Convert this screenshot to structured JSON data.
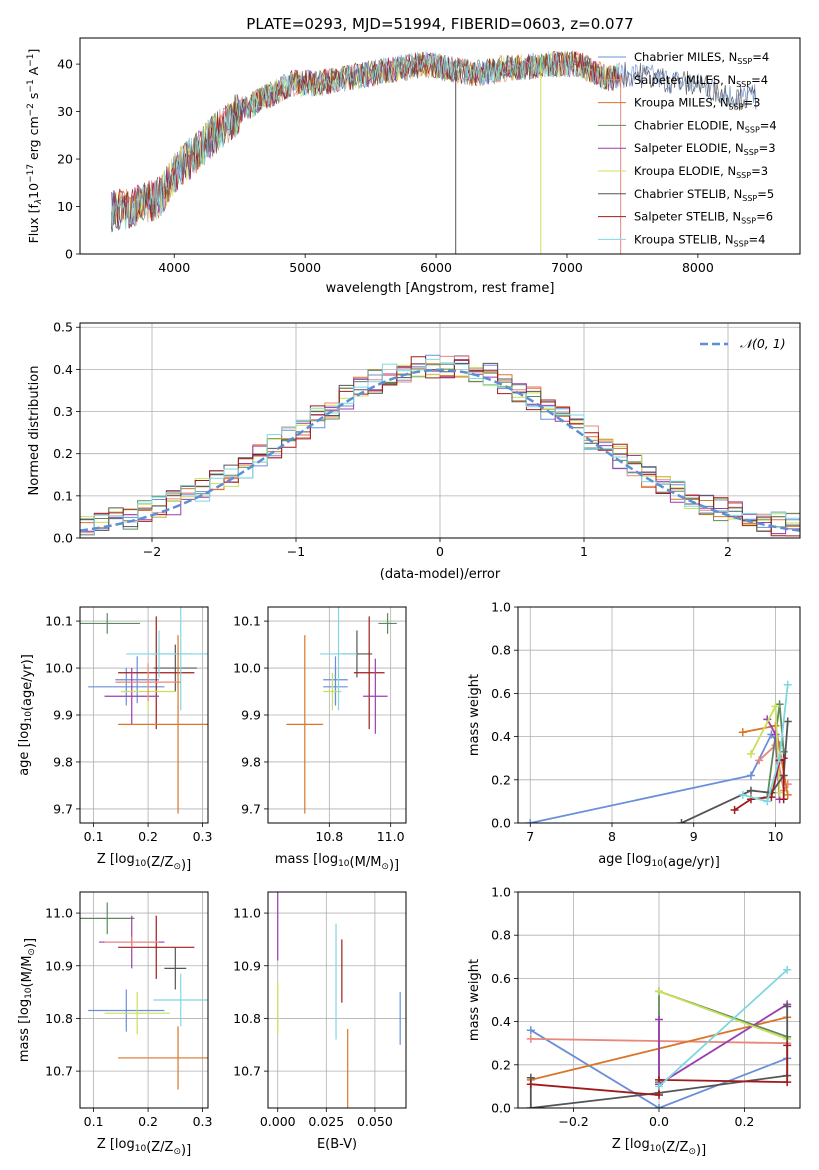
{
  "figure_title": "PLATE=0293, MJD=51994, FIBERID=0603, z=0.077",
  "colors": {
    "chabrier_miles": "#6a8fd8",
    "salpeter_miles": "#e9877c",
    "kroupa_miles": "#d9762a",
    "chabrier_elodie": "#5f8a5f",
    "salpeter_elodie": "#9a3fb0",
    "kroupa_elodie": "#c9e05a",
    "chabrier_stelib": "#555555",
    "salpeter_stelib": "#a01c1c",
    "kroupa_stelib": "#7fd7e0",
    "gauss": "#5b8fd6",
    "grid": "#b0b0b0"
  },
  "chart_data": [
    {
      "id": "spectrum",
      "type": "line",
      "title": "PLATE=0293, MJD=51994, FIBERID=0603, z=0.077",
      "xlabel": "wavelength [Angstrom, rest frame]",
      "ylabel_parts": [
        "Flux [f",
        "λ",
        "10",
        "−17",
        " erg cm",
        "−2",
        " s",
        "−1",
        " A",
        "−1",
        "]"
      ],
      "xlim": [
        3280,
        8780
      ],
      "ylim": [
        0,
        45.5
      ],
      "xticks": [
        4000,
        5000,
        6000,
        7000,
        8000
      ],
      "yticks": [
        0,
        10,
        20,
        30,
        40
      ],
      "grid": false,
      "legend": "top-right",
      "legend_entries": [
        {
          "name": "Chabrier MILES",
          "n": "4",
          "color_key": "chabrier_miles"
        },
        {
          "name": "Salpeter MILES",
          "n": "4",
          "color_key": "salpeter_miles"
        },
        {
          "name": "Kroupa MILES",
          "n": "3",
          "color_key": "kroupa_miles"
        },
        {
          "name": "Chabrier ELODIE",
          "n": "4",
          "color_key": "chabrier_elodie"
        },
        {
          "name": "Salpeter ELODIE",
          "n": "3",
          "color_key": "salpeter_elodie"
        },
        {
          "name": "Kroupa ELODIE",
          "n": "3",
          "color_key": "kroupa_elodie"
        },
        {
          "name": "Chabrier STELIB",
          "n": "5",
          "color_key": "chabrier_stelib"
        },
        {
          "name": "Salpeter STELIB",
          "n": "6",
          "color_key": "salpeter_stelib"
        },
        {
          "name": "Kroupa STELIB",
          "n": "4",
          "color_key": "kroupa_stelib"
        }
      ],
      "legend_n_sub": "SSP",
      "continuum": [
        [
          3500,
          9
        ],
        [
          3700,
          10
        ],
        [
          3900,
          12
        ],
        [
          4000,
          17
        ],
        [
          4150,
          21
        ],
        [
          4300,
          25
        ],
        [
          4500,
          30
        ],
        [
          4700,
          33
        ],
        [
          4900,
          36
        ],
        [
          5100,
          36
        ],
        [
          5300,
          37
        ],
        [
          5500,
          38
        ],
        [
          5700,
          39
        ],
        [
          5900,
          40
        ],
        [
          6100,
          39
        ],
        [
          6300,
          38
        ],
        [
          6500,
          39
        ],
        [
          6700,
          39.5
        ],
        [
          6900,
          40
        ],
        [
          7100,
          40
        ],
        [
          7300,
          37
        ],
        [
          7500,
          38
        ],
        [
          7800,
          36.5
        ],
        [
          8100,
          35
        ],
        [
          8300,
          33
        ],
        [
          8450,
          33
        ]
      ],
      "spikes": [
        {
          "x": 6150,
          "color_key": "chabrier_stelib"
        },
        {
          "x": 6800,
          "color_key": "kroupa_elodie"
        },
        {
          "x": 7410,
          "color_key": "salpeter_miles"
        }
      ]
    },
    {
      "id": "residuals",
      "type": "line",
      "xlabel": "(data-model)/error",
      "ylabel": "Normed distribution",
      "xlim": [
        -2.5,
        2.5
      ],
      "ylim": [
        0,
        0.51
      ],
      "xticks": [
        -2,
        -1,
        0,
        1,
        2
      ],
      "xtick_labels": [
        "−2",
        "−1",
        "0",
        "1",
        "2"
      ],
      "yticks": [
        0,
        0.1,
        0.2,
        0.3,
        0.4,
        0.5
      ],
      "ytick_labels": [
        "0.0",
        "0.1",
        "0.2",
        "0.3",
        "0.4",
        "0.5"
      ],
      "grid": true,
      "legend": "top-right",
      "gauss_label": "𝒩(0, 1)"
    },
    {
      "id": "age_vs_Z",
      "type": "scatter",
      "xlabel": "Z [log₁₀(Z/Z☉)]",
      "ylabel": "age  [log₁₀(age/yr)]",
      "xlim": [
        0.075,
        0.31
      ],
      "ylim": [
        9.67,
        10.13
      ],
      "xticks": [
        0.1,
        0.2,
        0.3
      ],
      "xtick_labels": [
        "0.1",
        "0.2",
        "0.3"
      ],
      "yticks": [
        9.7,
        9.8,
        9.9,
        10.0,
        10.1
      ],
      "ytick_labels": [
        "9.7",
        "9.8",
        "9.9",
        "10.0",
        "10.1"
      ],
      "grid": true,
      "points": [
        {
          "x": 0.125,
          "y": 10.095,
          "xerr": 0.06,
          "yerr": 0.022,
          "color_key": "chabrier_elodie"
        },
        {
          "x": 0.18,
          "y": 9.975,
          "xerr": 0.04,
          "yerr": 0.05,
          "color_key": "chabrier_miles"
        },
        {
          "x": 0.16,
          "y": 9.96,
          "xerr": 0.07,
          "yerr": 0.04,
          "color_key": "chabrier_miles"
        },
        {
          "x": 0.25,
          "y": 10.0,
          "xerr": 0.04,
          "yerr": 0.05,
          "color_key": "chabrier_stelib"
        },
        {
          "x": 0.215,
          "y": 9.99,
          "xerr": 0.07,
          "yerr": 0.12,
          "color_key": "salpeter_stelib"
        },
        {
          "x": 0.17,
          "y": 9.94,
          "xerr": 0.05,
          "yerr": 0.06,
          "color_key": "salpeter_elodie"
        },
        {
          "x": 0.2,
          "y": 9.95,
          "xerr": 0.05,
          "yerr": 0.04,
          "color_key": "kroupa_elodie"
        },
        {
          "x": 0.26,
          "y": 10.03,
          "xerr": 0.05,
          "yerr": 0.12,
          "color_key": "kroupa_stelib"
        },
        {
          "x": 0.22,
          "y": 10.03,
          "xerr": 0.06,
          "yerr": 0.05,
          "color_key": "kroupa_stelib"
        },
        {
          "x": 0.2,
          "y": 9.97,
          "xerr": 0.06,
          "yerr": 0.04,
          "color_key": "salpeter_miles"
        },
        {
          "x": 0.255,
          "y": 9.88,
          "xerr": 0.11,
          "yerr": 0.19,
          "color_key": "kroupa_miles"
        }
      ]
    },
    {
      "id": "age_vs_mass",
      "type": "scatter",
      "xlabel": "mass [log₁₀(M/M☉)]",
      "ylabel": "",
      "xlim": [
        10.6,
        11.05
      ],
      "ylim": [
        9.67,
        10.13
      ],
      "xticks": [
        10.8,
        11.0
      ],
      "xtick_labels": [
        "10.8",
        "11.0"
      ],
      "yticks": [
        9.7,
        9.8,
        9.9,
        10.0,
        10.1
      ],
      "ytick_labels": [
        "9.7",
        "9.8",
        "9.9",
        "10.0",
        "10.1"
      ],
      "grid": true,
      "points": [
        {
          "x": 10.99,
          "y": 10.095,
          "xerr": 0.03,
          "yerr": 0.022,
          "color_key": "chabrier_elodie"
        },
        {
          "x": 10.82,
          "y": 9.975,
          "xerr": 0.04,
          "yerr": 0.05,
          "color_key": "chabrier_miles"
        },
        {
          "x": 10.82,
          "y": 9.96,
          "xerr": 0.04,
          "yerr": 0.04,
          "color_key": "chabrier_miles"
        },
        {
          "x": 10.89,
          "y": 10.03,
          "xerr": 0.05,
          "yerr": 0.05,
          "color_key": "chabrier_stelib"
        },
        {
          "x": 10.93,
          "y": 9.99,
          "xerr": 0.05,
          "yerr": 0.12,
          "color_key": "salpeter_stelib"
        },
        {
          "x": 10.95,
          "y": 9.94,
          "xerr": 0.04,
          "yerr": 0.08,
          "color_key": "salpeter_elodie"
        },
        {
          "x": 10.81,
          "y": 9.95,
          "xerr": 0.03,
          "yerr": 0.04,
          "color_key": "kroupa_elodie"
        },
        {
          "x": 10.83,
          "y": 10.03,
          "xerr": 0.06,
          "yerr": 0.12,
          "color_key": "kroupa_stelib"
        },
        {
          "x": 10.72,
          "y": 9.88,
          "xerr": 0.06,
          "yerr": 0.19,
          "color_key": "kroupa_miles"
        }
      ]
    },
    {
      "id": "weight_vs_age",
      "type": "line",
      "xlabel": "age  [log₁₀(age/yr)]",
      "ylabel": "mass weight",
      "xlim": [
        6.85,
        10.3
      ],
      "ylim": [
        0,
        1.0
      ],
      "xticks": [
        7,
        8,
        9,
        10
      ],
      "xtick_labels": [
        "7",
        "8",
        "9",
        "10"
      ],
      "yticks": [
        0,
        0.2,
        0.4,
        0.6,
        0.8,
        1.0
      ],
      "ytick_labels": [
        "0.0",
        "0.2",
        "0.4",
        "0.6",
        "0.8",
        "1.0"
      ],
      "grid": true,
      "series": [
        {
          "color_key": "chabrier_miles",
          "points": [
            [
              7.0,
              0.0
            ],
            [
              9.7,
              0.22
            ],
            [
              9.95,
              0.41
            ],
            [
              10.05,
              0.36
            ]
          ]
        },
        {
          "color_key": "salpeter_miles",
          "points": [
            [
              9.8,
              0.29
            ],
            [
              10.0,
              0.36
            ],
            [
              10.1,
              0.15
            ],
            [
              10.15,
              0.18
            ]
          ]
        },
        {
          "color_key": "kroupa_miles",
          "points": [
            [
              9.6,
              0.42
            ],
            [
              10.0,
              0.45
            ],
            [
              10.15,
              0.13
            ]
          ]
        },
        {
          "color_key": "chabrier_elodie",
          "points": [
            [
              9.9,
              0.12
            ],
            [
              10.05,
              0.55
            ],
            [
              10.1,
              0.33
            ]
          ]
        },
        {
          "color_key": "salpeter_elodie",
          "points": [
            [
              9.9,
              0.48
            ],
            [
              10.0,
              0.41
            ],
            [
              10.05,
              0.11
            ]
          ]
        },
        {
          "color_key": "kroupa_elodie",
          "points": [
            [
              9.7,
              0.32
            ],
            [
              10.0,
              0.54
            ],
            [
              10.05,
              0.14
            ]
          ]
        },
        {
          "color_key": "chabrier_stelib",
          "points": [
            [
              8.85,
              0.0
            ],
            [
              9.7,
              0.15
            ],
            [
              9.95,
              0.14
            ],
            [
              10.1,
              0.22
            ],
            [
              10.15,
              0.47
            ]
          ]
        },
        {
          "color_key": "salpeter_stelib",
          "points": [
            [
              9.5,
              0.06
            ],
            [
              9.7,
              0.11
            ],
            [
              9.95,
              0.12
            ],
            [
              10.05,
              0.29
            ],
            [
              10.1,
              0.3
            ],
            [
              10.1,
              0.11
            ]
          ]
        },
        {
          "color_key": "kroupa_stelib",
          "points": [
            [
              9.6,
              0.13
            ],
            [
              9.9,
              0.1
            ],
            [
              10.05,
              0.3
            ],
            [
              10.15,
              0.64
            ]
          ]
        }
      ]
    },
    {
      "id": "mass_vs_Z",
      "type": "scatter",
      "xlabel": "Z [log₁₀(Z/Z☉)]",
      "ylabel": "mass [log₁₀(M/M☉)]",
      "xlim": [
        0.075,
        0.31
      ],
      "ylim": [
        10.63,
        11.04
      ],
      "xticks": [
        0.1,
        0.2,
        0.3
      ],
      "xtick_labels": [
        "0.1",
        "0.2",
        "0.3"
      ],
      "yticks": [
        10.7,
        10.8,
        10.9,
        11.0
      ],
      "ytick_labels": [
        "10.7",
        "10.8",
        "10.9",
        "11.0"
      ],
      "grid": true,
      "points": [
        {
          "x": 0.125,
          "y": 10.99,
          "xerr": 0.05,
          "yerr": 0.03,
          "color_key": "chabrier_elodie"
        },
        {
          "x": 0.17,
          "y": 10.945,
          "xerr": 0.06,
          "yerr": 0.05,
          "color_key": "salpeter_elodie"
        },
        {
          "x": 0.215,
          "y": 10.935,
          "xerr": 0.07,
          "yerr": 0.06,
          "color_key": "salpeter_stelib"
        },
        {
          "x": 0.25,
          "y": 10.895,
          "xerr": 0.02,
          "yerr": 0.04,
          "color_key": "chabrier_stelib"
        },
        {
          "x": 0.26,
          "y": 10.835,
          "xerr": 0.05,
          "yerr": 0.05,
          "color_key": "kroupa_stelib"
        },
        {
          "x": 0.16,
          "y": 10.815,
          "xerr": 0.07,
          "yerr": 0.04,
          "color_key": "chabrier_miles"
        },
        {
          "x": 0.18,
          "y": 10.81,
          "xerr": 0.06,
          "yerr": 0.04,
          "color_key": "kroupa_elodie"
        },
        {
          "x": 0.255,
          "y": 10.725,
          "xerr": 0.11,
          "yerr": 0.06,
          "color_key": "kroupa_miles"
        },
        {
          "x": 0.17,
          "y": 10.945,
          "xerr": 0.05,
          "yerr": 0.01,
          "color_key": "salpeter_miles"
        }
      ]
    },
    {
      "id": "mass_vs_ebv",
      "type": "scatter",
      "xlabel": "E(B-V)",
      "ylabel": "",
      "xlim": [
        -0.005,
        0.066
      ],
      "ylim": [
        10.63,
        11.04
      ],
      "xticks": [
        0.0,
        0.025,
        0.05
      ],
      "xtick_labels": [
        "0.000",
        "0.025",
        "0.050"
      ],
      "yticks": [
        10.7,
        10.8,
        10.9,
        11.0
      ],
      "ytick_labels": [
        "10.7",
        "10.8",
        "10.9",
        "11.0"
      ],
      "grid": true,
      "points": [
        {
          "x": 0.0,
          "y": 10.99,
          "xerr": 0,
          "yerr": 0.08,
          "color_key": "salpeter_elodie"
        },
        {
          "x": 0.0,
          "y": 10.82,
          "xerr": 0,
          "yerr": 0.05,
          "color_key": "kroupa_elodie"
        },
        {
          "x": 0.03,
          "y": 10.87,
          "xerr": 0,
          "yerr": 0.11,
          "color_key": "kroupa_stelib"
        },
        {
          "x": 0.033,
          "y": 10.89,
          "xerr": 0,
          "yerr": 0.06,
          "color_key": "salpeter_stelib"
        },
        {
          "x": 0.036,
          "y": 10.7,
          "xerr": 0,
          "yerr": 0.08,
          "color_key": "kroupa_miles"
        },
        {
          "x": 0.063,
          "y": 10.8,
          "xerr": 0,
          "yerr": 0.05,
          "color_key": "chabrier_miles"
        }
      ]
    },
    {
      "id": "weight_vs_Z",
      "type": "line",
      "xlabel": "Z [log₁₀(Z/Z☉)]",
      "ylabel": "mass weight",
      "xlim": [
        -0.33,
        0.33
      ],
      "ylim": [
        0,
        1.0
      ],
      "xticks": [
        -0.2,
        0.0,
        0.2
      ],
      "xtick_labels": [
        "−0.2",
        "0.0",
        "0.2"
      ],
      "yticks": [
        0,
        0.2,
        0.4,
        0.6,
        0.8,
        1.0
      ],
      "ytick_labels": [
        "0.0",
        "0.2",
        "0.4",
        "0.6",
        "0.8",
        "1.0"
      ],
      "grid": true,
      "series": [
        {
          "color_key": "chabrier_miles",
          "points": [
            [
              -0.3,
              0.36
            ],
            [
              0.0,
              0.0
            ],
            [
              0.3,
              0.23
            ]
          ]
        },
        {
          "color_key": "salpeter_miles",
          "points": [
            [
              -0.3,
              0.32
            ],
            [
              0.3,
              0.3
            ]
          ]
        },
        {
          "color_key": "kroupa_miles",
          "points": [
            [
              -0.3,
              0.13
            ],
            [
              0.3,
              0.42
            ]
          ]
        },
        {
          "color_key": "chabrier_elodie",
          "points": [
            [
              0.0,
              0.12
            ],
            [
              0.0,
              0.54
            ],
            [
              0.3,
              0.33
            ]
          ]
        },
        {
          "color_key": "salpeter_elodie",
          "points": [
            [
              0.0,
              0.41
            ],
            [
              0.0,
              0.11
            ],
            [
              0.3,
              0.48
            ]
          ]
        },
        {
          "color_key": "kroupa_elodie",
          "points": [
            [
              0.0,
              0.54
            ],
            [
              0.3,
              0.32
            ]
          ]
        },
        {
          "color_key": "chabrier_stelib",
          "points": [
            [
              -0.3,
              0.14
            ],
            [
              -0.3,
              0.0
            ],
            [
              0.0,
              0.07
            ],
            [
              0.3,
              0.15
            ],
            [
              0.3,
              0.47
            ]
          ]
        },
        {
          "color_key": "salpeter_stelib",
          "points": [
            [
              -0.3,
              0.11
            ],
            [
              0.0,
              0.06
            ],
            [
              0.0,
              0.13
            ],
            [
              0.3,
              0.12
            ],
            [
              0.3,
              0.29
            ]
          ]
        },
        {
          "color_key": "kroupa_stelib",
          "points": [
            [
              0.0,
              0.1
            ],
            [
              0.3,
              0.64
            ]
          ]
        }
      ]
    }
  ]
}
